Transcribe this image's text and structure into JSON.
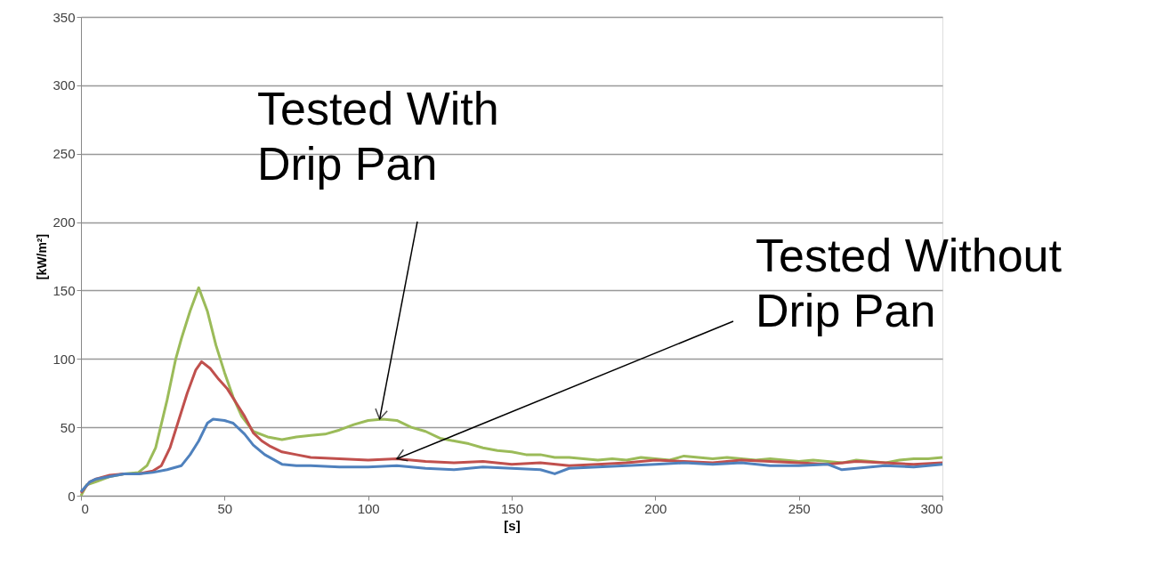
{
  "chart_data": {
    "type": "line",
    "xlabel": "[s]",
    "ylabel": "[kW/m²]",
    "xlim": [
      0,
      300
    ],
    "xticks": [
      0,
      50,
      100,
      150,
      200,
      250,
      300
    ],
    "ylim": [
      0,
      350
    ],
    "yticks": [
      0,
      50,
      100,
      150,
      200,
      250,
      300,
      350
    ],
    "grid": "y",
    "legend": false,
    "marker": "none",
    "line_style": "solid",
    "series": [
      {
        "color": "#9bbb59",
        "x": [
          0,
          2,
          5,
          10,
          15,
          20,
          23,
          26,
          30,
          33,
          35,
          38,
          41,
          44,
          47,
          50,
          53,
          56,
          60,
          65,
          70,
          75,
          80,
          85,
          90,
          95,
          100,
          105,
          110,
          115,
          120,
          125,
          130,
          135,
          140,
          145,
          150,
          155,
          160,
          165,
          170,
          175,
          180,
          185,
          190,
          195,
          200,
          205,
          210,
          215,
          220,
          225,
          230,
          235,
          240,
          245,
          250,
          255,
          260,
          265,
          270,
          275,
          280,
          285,
          290,
          295,
          300
        ],
        "values": [
          0,
          8,
          10,
          14,
          16,
          17,
          22,
          35,
          70,
          100,
          115,
          135,
          152,
          135,
          110,
          90,
          72,
          58,
          47,
          43,
          41,
          43,
          44,
          45,
          48,
          52,
          55,
          56,
          55,
          50,
          47,
          42,
          40,
          38,
          35,
          33,
          32,
          30,
          30,
          28,
          28,
          27,
          26,
          27,
          26,
          28,
          27,
          26,
          29,
          28,
          27,
          28,
          27,
          26,
          27,
          26,
          25,
          26,
          25,
          24,
          26,
          25,
          24,
          26,
          27,
          27,
          28
        ]
      },
      {
        "color": "#c0504d",
        "x": [
          0,
          3,
          5,
          10,
          15,
          20,
          25,
          28,
          31,
          34,
          37,
          40,
          42,
          45,
          48,
          51,
          54,
          57,
          60,
          63,
          66,
          70,
          75,
          80,
          90,
          100,
          110,
          120,
          130,
          140,
          150,
          160,
          170,
          180,
          190,
          200,
          210,
          220,
          230,
          240,
          250,
          260,
          270,
          280,
          290,
          300
        ],
        "values": [
          2,
          10,
          12,
          15,
          16,
          16,
          18,
          22,
          35,
          55,
          75,
          92,
          98,
          93,
          85,
          78,
          68,
          58,
          46,
          40,
          36,
          32,
          30,
          28,
          27,
          26,
          27,
          25,
          24,
          25,
          23,
          24,
          22,
          23,
          24,
          26,
          25,
          24,
          26,
          25,
          24,
          23,
          25,
          24,
          23,
          24
        ]
      },
      {
        "color": "#4f81bd",
        "x": [
          0,
          3,
          5,
          10,
          15,
          20,
          25,
          30,
          35,
          38,
          41,
          44,
          46,
          50,
          53,
          57,
          60,
          64,
          70,
          75,
          80,
          90,
          100,
          110,
          120,
          130,
          140,
          150,
          160,
          165,
          170,
          180,
          190,
          200,
          210,
          220,
          230,
          240,
          250,
          260,
          265,
          270,
          280,
          290,
          300
        ],
        "values": [
          3,
          10,
          12,
          14,
          16,
          16,
          17,
          19,
          22,
          30,
          40,
          53,
          56,
          55,
          53,
          45,
          37,
          30,
          23,
          22,
          22,
          21,
          21,
          22,
          20,
          19,
          21,
          20,
          19,
          16,
          20,
          21,
          22,
          23,
          24,
          23,
          24,
          22,
          22,
          23,
          19,
          20,
          22,
          21,
          23
        ]
      }
    ],
    "annotations": [
      {
        "text": "Tested With\nDrip Pan",
        "x": 104,
        "y": 56
      },
      {
        "text": "Tested Without\nDrip Pan",
        "x": 110,
        "y": 27
      }
    ]
  }
}
